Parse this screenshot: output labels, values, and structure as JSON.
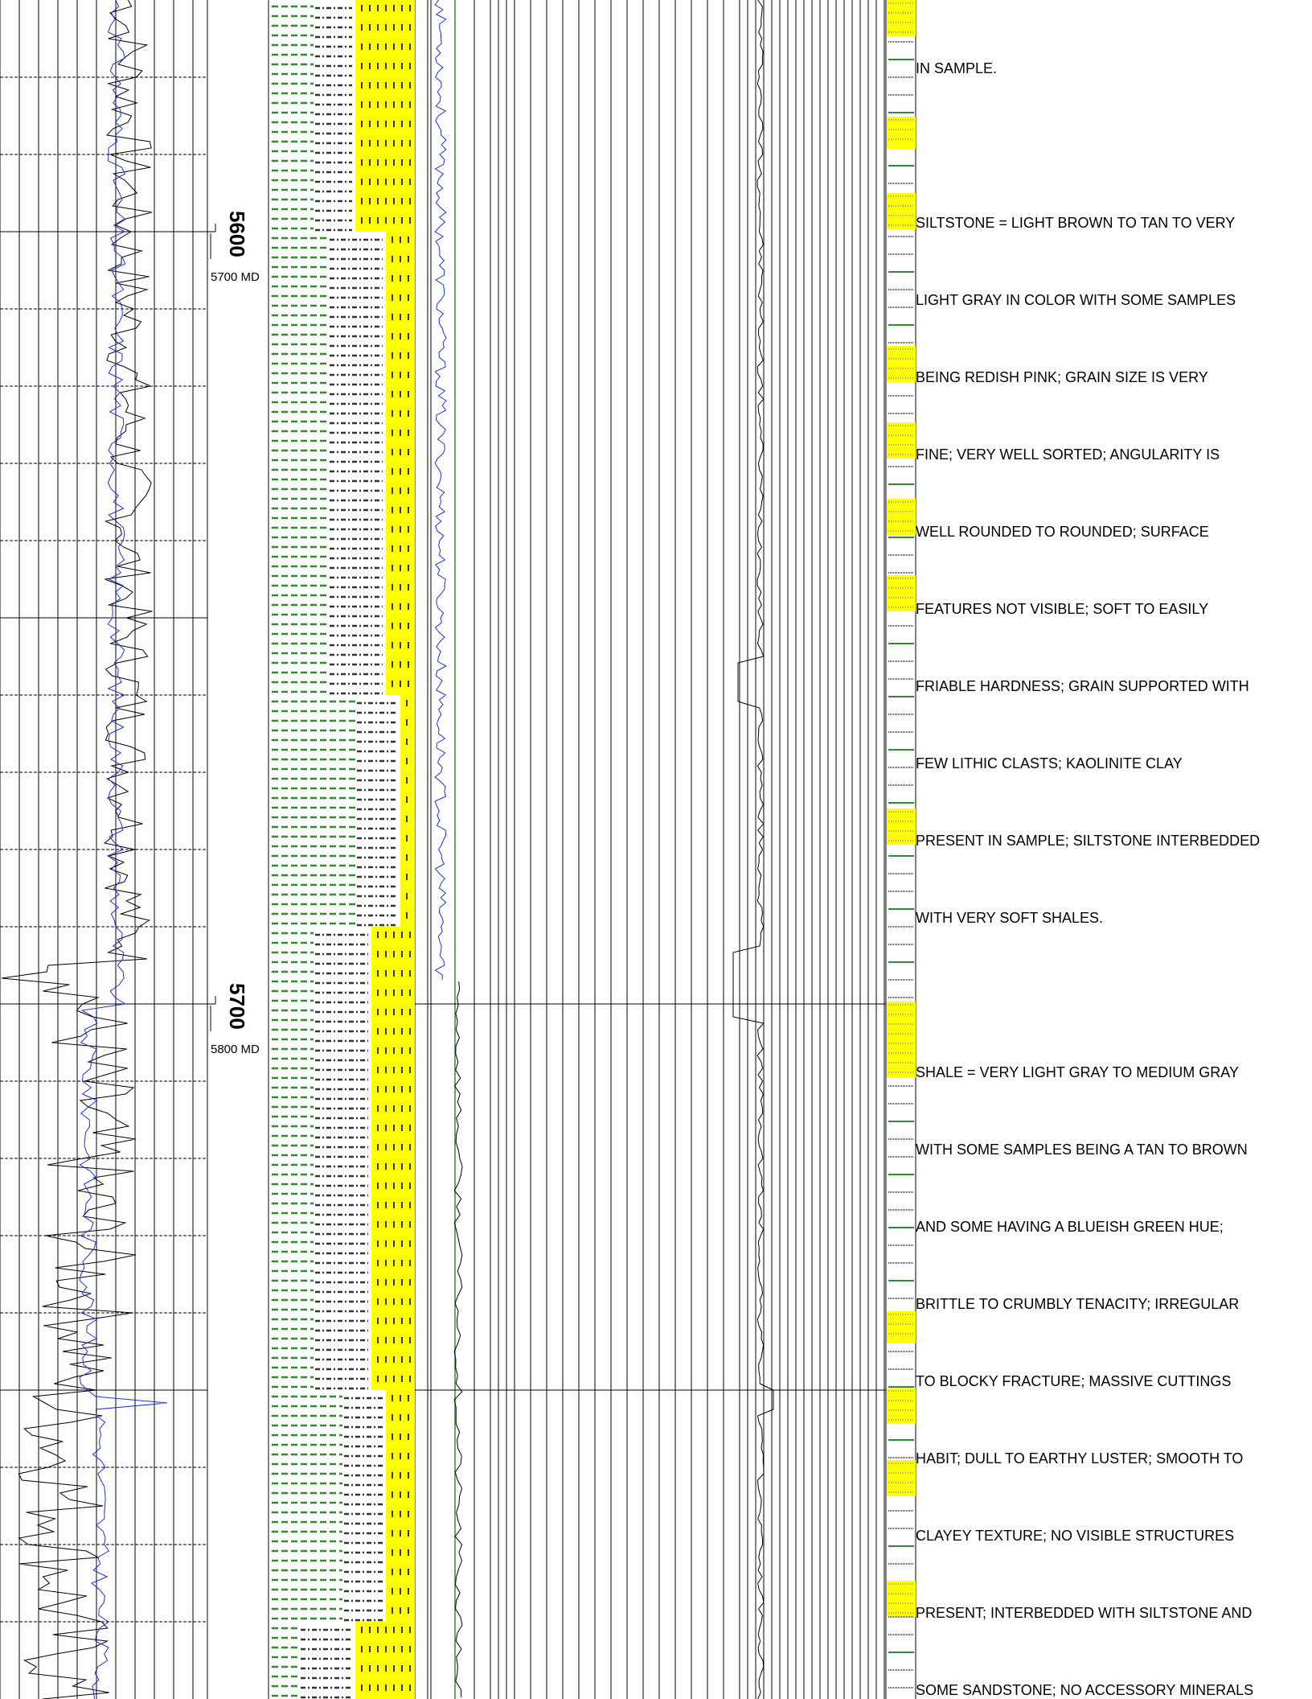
{
  "depth_track": {
    "labels": [
      {
        "depth": "5600",
        "md": "5700 MD"
      },
      {
        "depth": "5700",
        "md": "5800 MD"
      }
    ]
  },
  "colors": {
    "sandstone": "#ffff00",
    "shale": "#2e8b2e",
    "siltstone": "#333333",
    "gamma_curve": "#000000",
    "secondary_curve": "#1f2fd6",
    "grid": "#000000"
  },
  "lithology_legend": [
    "shale",
    "siltstone",
    "sandstone"
  ],
  "descriptions": [
    "IN SAMPLE.",
    "SILTSTONE = LIGHT BROWN TO TAN TO VERY",
    "LIGHT GRAY IN COLOR WITH SOME SAMPLES",
    "BEING REDISH PINK; GRAIN SIZE IS VERY",
    "FINE; VERY WELL SORTED; ANGULARITY IS",
    "WELL ROUNDED TO ROUNDED; SURFACE",
    "FEATURES NOT VISIBLE; SOFT TO EASILY",
    "FRIABLE HARDNESS; GRAIN SUPPORTED WITH",
    "FEW LITHIC CLASTS; KAOLINITE CLAY",
    "PRESENT IN SAMPLE; SILTSTONE INTERBEDDED",
    "WITH VERY SOFT SHALES.",
    "",
    "SHALE = VERY LIGHT GRAY TO MEDIUM GRAY",
    "WITH SOME SAMPLES BEING A TAN TO BROWN",
    "AND SOME HAVING A BLUEISH GREEN HUE;",
    "BRITTLE TO CRUMBLY TENACITY; IRREGULAR",
    "TO BLOCKY FRACTURE; MASSIVE CUTTINGS",
    "HABIT; DULL TO EARTHY LUSTER; SMOOTH TO",
    "CLAYEY TEXTURE; NO VISIBLE STRUCTURES",
    "PRESENT; INTERBEDDED WITH SILTSTONE AND",
    "SOME SANDSTONE; NO ACCESSORY MINERALS"
  ]
}
